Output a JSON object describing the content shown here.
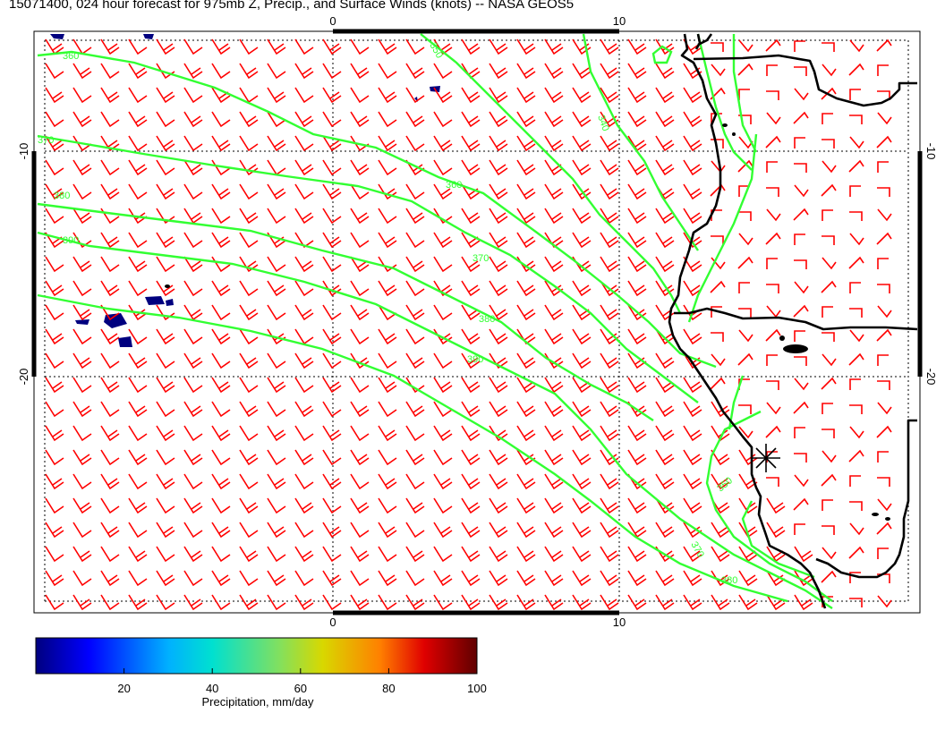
{
  "title": "15071400, 024 hour forecast for 975mb Z, Precip., and Surface Winds (knots) -- NASA GEOS5",
  "axes": {
    "top_ticks": [
      "0",
      "10"
    ],
    "bottom_ticks": [
      "0",
      "10"
    ],
    "left_ticks": [
      "-10",
      "-20"
    ],
    "right_ticks": [
      "-10",
      "-20"
    ]
  },
  "contour_labels": [
    "360",
    "370",
    "380",
    "390",
    "360",
    "370",
    "380",
    "390",
    "340",
    "350",
    "350",
    "370",
    "380"
  ],
  "colorbar": {
    "label": "Precipitation, mm/day",
    "ticks": [
      "20",
      "40",
      "60",
      "80",
      "100"
    ],
    "range": [
      0,
      100
    ]
  },
  "colors": {
    "wind_barbs": "#ff0000",
    "contours": "#32ff32",
    "coastline": "#000000",
    "precip_low": "#00007f"
  },
  "marker": "asterisk"
}
